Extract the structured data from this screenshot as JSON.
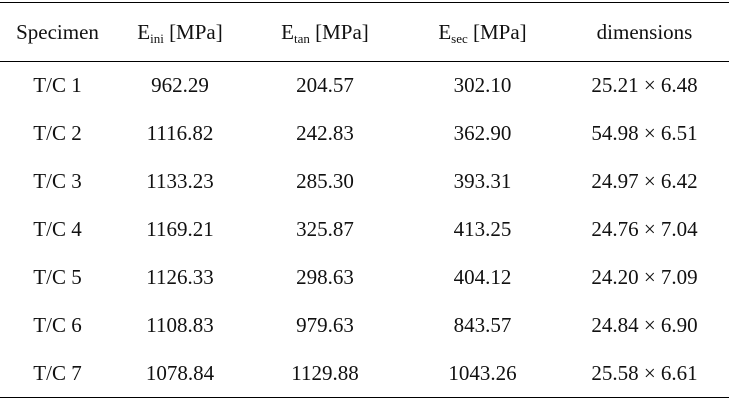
{
  "table": {
    "header": [
      {
        "text": "Specimen"
      },
      {
        "base": "E",
        "sub": "ini",
        "unit": "[MPa]"
      },
      {
        "base": "E",
        "sub": "tan",
        "unit": "[MPa]"
      },
      {
        "base": "E",
        "sub": "sec",
        "unit": "[MPa]"
      },
      {
        "text": "dimensions"
      }
    ],
    "rows": [
      [
        "T/C 1",
        "962.29",
        "204.57",
        "302.10",
        "25.21 × 6.48"
      ],
      [
        "T/C 2",
        "1116.82",
        "242.83",
        "362.90",
        "54.98 × 6.51"
      ],
      [
        "T/C 3",
        "1133.23",
        "285.30",
        "393.31",
        "24.97 × 6.42"
      ],
      [
        "T/C 4",
        "1169.21",
        "325.87",
        "413.25",
        "24.76 × 7.04"
      ],
      [
        "T/C 5",
        "1126.33",
        "298.63",
        "404.12",
        "24.20 × 7.09"
      ],
      [
        "T/C 6",
        "1108.83",
        "979.63",
        "843.57",
        "24.84 × 6.90"
      ],
      [
        "T/C 7",
        "1078.84",
        "1129.88",
        "1043.26",
        "25.58 × 6.61"
      ]
    ]
  }
}
